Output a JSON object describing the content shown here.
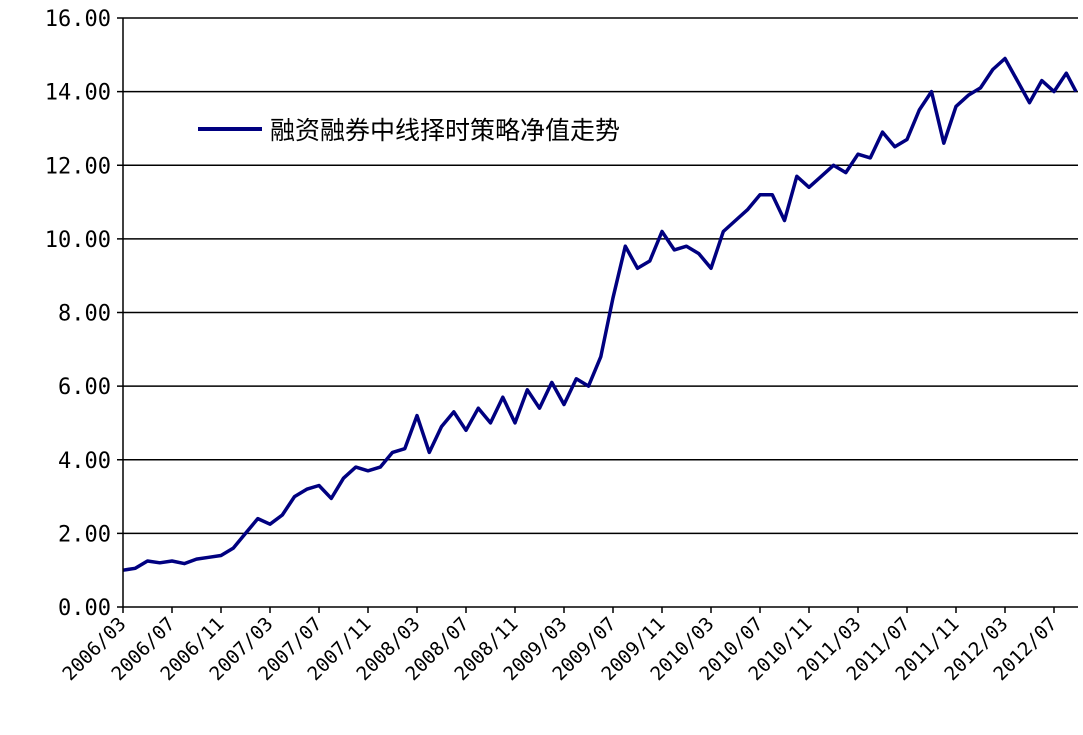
{
  "chart_data": {
    "type": "line",
    "title": "",
    "xlabel": "",
    "ylabel": "",
    "ylim": [
      0,
      16
    ],
    "y_ticks": [
      "0.00",
      "2.00",
      "4.00",
      "6.00",
      "8.00",
      "10.00",
      "12.00",
      "14.00",
      "16.00"
    ],
    "x_ticks": [
      "2006/03",
      "2006/07",
      "2006/11",
      "2007/03",
      "2007/07",
      "2007/11",
      "2008/03",
      "2008/07",
      "2008/11",
      "2009/03",
      "2009/07",
      "2009/11",
      "2010/03",
      "2010/07",
      "2010/11",
      "2011/03",
      "2011/07",
      "2011/11",
      "2012/03",
      "2012/07"
    ],
    "grid": "horizontal",
    "legend_position": "top-left",
    "colors": {
      "series": "#000080",
      "grid": "#000000",
      "axis": "#000000"
    },
    "series": [
      {
        "name": "融资融券中线择时策略净值走势",
        "x": [
          "2006/03",
          "2006/04",
          "2006/05",
          "2006/06",
          "2006/07",
          "2006/08",
          "2006/09",
          "2006/10",
          "2006/11",
          "2006/12",
          "2007/01",
          "2007/02",
          "2007/03",
          "2007/04",
          "2007/05",
          "2007/06",
          "2007/07",
          "2007/08",
          "2007/09",
          "2007/10",
          "2007/11",
          "2007/12",
          "2008/01",
          "2008/02",
          "2008/03",
          "2008/04",
          "2008/05",
          "2008/06",
          "2008/07",
          "2008/08",
          "2008/09",
          "2008/10",
          "2008/11",
          "2008/12",
          "2009/01",
          "2009/02",
          "2009/03",
          "2009/04",
          "2009/05",
          "2009/06",
          "2009/07",
          "2009/08",
          "2009/09",
          "2009/10",
          "2009/11",
          "2009/12",
          "2010/01",
          "2010/02",
          "2010/03",
          "2010/04",
          "2010/05",
          "2010/06",
          "2010/07",
          "2010/08",
          "2010/09",
          "2010/10",
          "2010/11",
          "2010/12",
          "2011/01",
          "2011/02",
          "2011/03",
          "2011/04",
          "2011/05",
          "2011/06",
          "2011/07",
          "2011/08",
          "2011/09",
          "2011/10",
          "2011/11",
          "2011/12",
          "2012/01",
          "2012/02",
          "2012/03",
          "2012/04",
          "2012/05",
          "2012/06",
          "2012/07",
          "2012/08",
          "2012/09"
        ],
        "values": [
          1.0,
          1.05,
          1.25,
          1.2,
          1.25,
          1.18,
          1.3,
          1.35,
          1.4,
          1.6,
          2.0,
          2.4,
          2.25,
          2.5,
          3.0,
          3.2,
          3.3,
          2.95,
          3.5,
          3.8,
          3.7,
          3.8,
          4.2,
          4.3,
          5.2,
          4.2,
          4.9,
          5.3,
          4.8,
          5.4,
          5.0,
          5.7,
          5.0,
          5.9,
          5.4,
          6.1,
          5.5,
          6.2,
          6.0,
          6.8,
          8.4,
          9.8,
          9.2,
          9.4,
          10.2,
          9.7,
          9.8,
          9.6,
          9.2,
          10.2,
          10.5,
          10.8,
          11.2,
          11.2,
          10.5,
          11.7,
          11.4,
          11.7,
          12.0,
          11.8,
          12.3,
          12.2,
          12.9,
          12.5,
          12.7,
          13.5,
          14.0,
          12.6,
          13.6,
          13.9,
          14.1,
          14.6,
          14.9,
          14.3,
          13.7,
          14.3,
          14.0,
          14.5,
          14.0
        ]
      }
    ]
  }
}
